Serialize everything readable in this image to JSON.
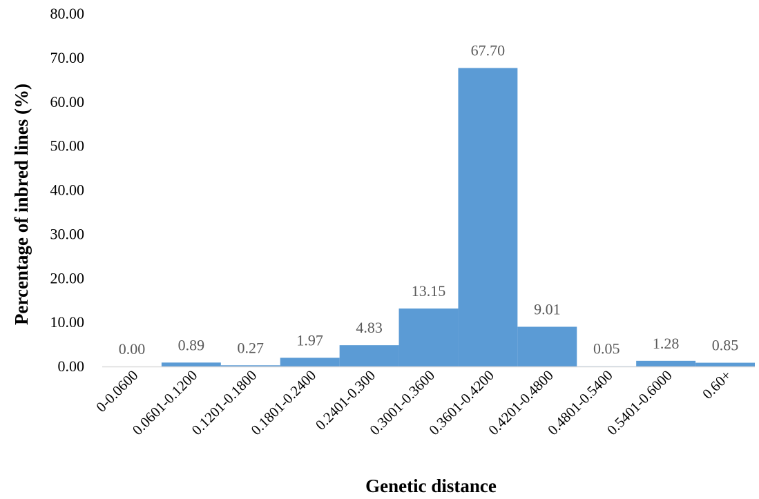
{
  "chart_data": {
    "type": "bar",
    "title": "",
    "xlabel": "Genetic distance",
    "ylabel": "Percentage of inbred lines (%)",
    "ylim": [
      0,
      80
    ],
    "yticks": [
      "0.00",
      "10.00",
      "20.00",
      "30.00",
      "40.00",
      "50.00",
      "60.00",
      "70.00",
      "80.00"
    ],
    "categories": [
      "0-0.0600",
      "0.0601-0.1200",
      "0.1201-0.1800",
      "0.1801-0.2400",
      "0.2401-0.300",
      "0.3001-0.3600",
      "0.3601-0.4200",
      "0.4201-0.4800",
      "0.4801-0.5400",
      "0.5401-0.6000",
      "0.60+"
    ],
    "values": [
      0.0,
      0.89,
      0.27,
      1.97,
      4.83,
      13.15,
      67.7,
      9.01,
      0.05,
      1.28,
      0.85
    ],
    "value_labels": [
      "0.00",
      "0.89",
      "0.27",
      "1.97",
      "4.83",
      "13.15",
      "67.70",
      "9.01",
      "0.05",
      "1.28",
      "0.85"
    ],
    "bar_color": "#5b9bd5",
    "grid": false,
    "legend": "none"
  }
}
